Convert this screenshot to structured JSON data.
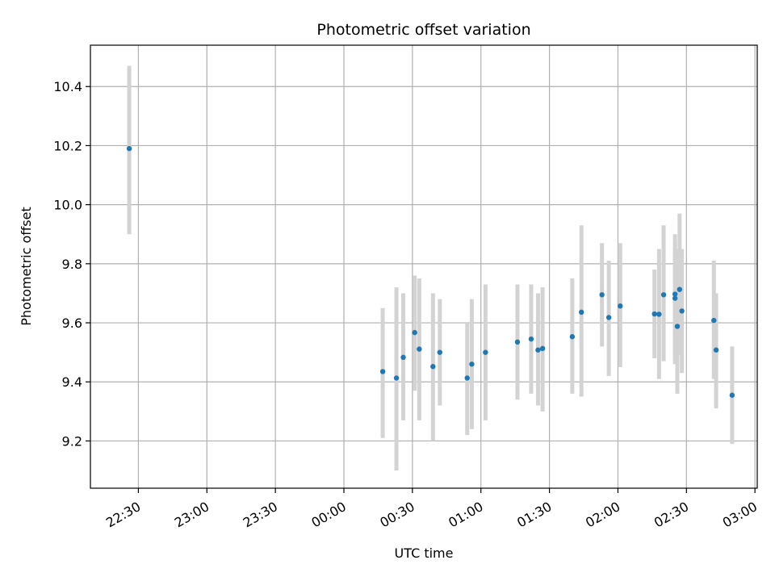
{
  "chart_data": {
    "type": "scatter",
    "title": "Photometric offset variation",
    "xlabel": "UTC time",
    "ylabel": "Photometric offset",
    "x_axis_kind": "time",
    "xlim": [
      "22:09",
      "03:01"
    ],
    "ylim": [
      9.04,
      10.54
    ],
    "grid": true,
    "x_ticks": [
      "22:30",
      "23:00",
      "23:30",
      "00:00",
      "00:30",
      "01:00",
      "01:30",
      "02:00",
      "02:30",
      "03:00"
    ],
    "y_ticks": [
      9.2,
      9.4,
      9.6,
      9.8,
      10.0,
      10.2,
      10.4
    ],
    "colors": {
      "point": "#1f77b4",
      "errorbar": "#d3d3d3",
      "grid": "#b0b0b0"
    },
    "points": [
      {
        "x": "22:26",
        "y": 10.19,
        "ylow": 9.9,
        "yhigh": 10.47
      },
      {
        "x": "00:17",
        "y": 9.435,
        "ylow": 9.21,
        "yhigh": 9.65
      },
      {
        "x": "00:23",
        "y": 9.413,
        "ylow": 9.1,
        "yhigh": 9.72
      },
      {
        "x": "00:26",
        "y": 9.483,
        "ylow": 9.27,
        "yhigh": 9.7
      },
      {
        "x": "00:31",
        "y": 9.567,
        "ylow": 9.37,
        "yhigh": 9.76
      },
      {
        "x": "00:33",
        "y": 9.511,
        "ylow": 9.27,
        "yhigh": 9.75
      },
      {
        "x": "00:39",
        "y": 9.452,
        "ylow": 9.2,
        "yhigh": 9.7
      },
      {
        "x": "00:42",
        "y": 9.5,
        "ylow": 9.32,
        "yhigh": 9.68
      },
      {
        "x": "00:54",
        "y": 9.413,
        "ylow": 9.22,
        "yhigh": 9.6
      },
      {
        "x": "00:56",
        "y": 9.46,
        "ylow": 9.24,
        "yhigh": 9.68
      },
      {
        "x": "01:02",
        "y": 9.5,
        "ylow": 9.27,
        "yhigh": 9.73
      },
      {
        "x": "01:16",
        "y": 9.535,
        "ylow": 9.34,
        "yhigh": 9.73
      },
      {
        "x": "01:22",
        "y": 9.545,
        "ylow": 9.36,
        "yhigh": 9.73
      },
      {
        "x": "01:25",
        "y": 9.508,
        "ylow": 9.32,
        "yhigh": 9.7
      },
      {
        "x": "01:27",
        "y": 9.513,
        "ylow": 9.3,
        "yhigh": 9.72
      },
      {
        "x": "01:40",
        "y": 9.553,
        "ylow": 9.36,
        "yhigh": 9.75
      },
      {
        "x": "01:44",
        "y": 9.636,
        "ylow": 9.35,
        "yhigh": 9.93
      },
      {
        "x": "01:53",
        "y": 9.695,
        "ylow": 9.52,
        "yhigh": 9.87
      },
      {
        "x": "01:56",
        "y": 9.618,
        "ylow": 9.42,
        "yhigh": 9.81
      },
      {
        "x": "02:01",
        "y": 9.657,
        "ylow": 9.45,
        "yhigh": 9.87
      },
      {
        "x": "02:16",
        "y": 9.63,
        "ylow": 9.48,
        "yhigh": 9.78
      },
      {
        "x": "02:18",
        "y": 9.629,
        "ylow": 9.41,
        "yhigh": 9.85
      },
      {
        "x": "02:20",
        "y": 9.695,
        "ylow": 9.47,
        "yhigh": 9.93
      },
      {
        "x": "02:25",
        "y": 9.697,
        "ylow": 9.46,
        "yhigh": 9.87
      },
      {
        "x": "02:25",
        "y": 9.683,
        "ylow": 9.47,
        "yhigh": 9.9
      },
      {
        "x": "02:26",
        "y": 9.588,
        "ylow": 9.36,
        "yhigh": 9.85
      },
      {
        "x": "02:27",
        "y": 9.713,
        "ylow": 9.49,
        "yhigh": 9.97
      },
      {
        "x": "02:28",
        "y": 9.64,
        "ylow": 9.43,
        "yhigh": 9.85
      },
      {
        "x": "02:42",
        "y": 9.608,
        "ylow": 9.41,
        "yhigh": 9.81
      },
      {
        "x": "02:43",
        "y": 9.508,
        "ylow": 9.31,
        "yhigh": 9.7
      },
      {
        "x": "02:50",
        "y": 9.355,
        "ylow": 9.19,
        "yhigh": 9.52
      }
    ]
  }
}
